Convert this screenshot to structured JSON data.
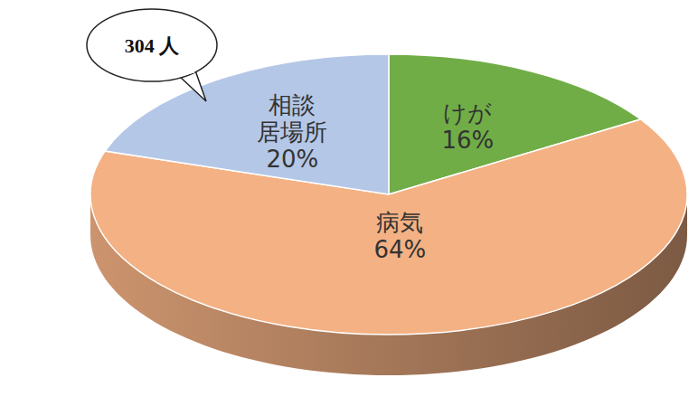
{
  "chart_data": {
    "type": "pie",
    "categories": [
      "けが",
      "病気",
      "相談\n居場所"
    ],
    "values": [
      16,
      64,
      20
    ],
    "value_labels": [
      "16%",
      "64%",
      "20%"
    ],
    "colors": [
      "#70ad47",
      "#f4b183",
      "#b4c7e7"
    ],
    "data_labels": true,
    "annotations": [
      "304 人"
    ]
  }
}
